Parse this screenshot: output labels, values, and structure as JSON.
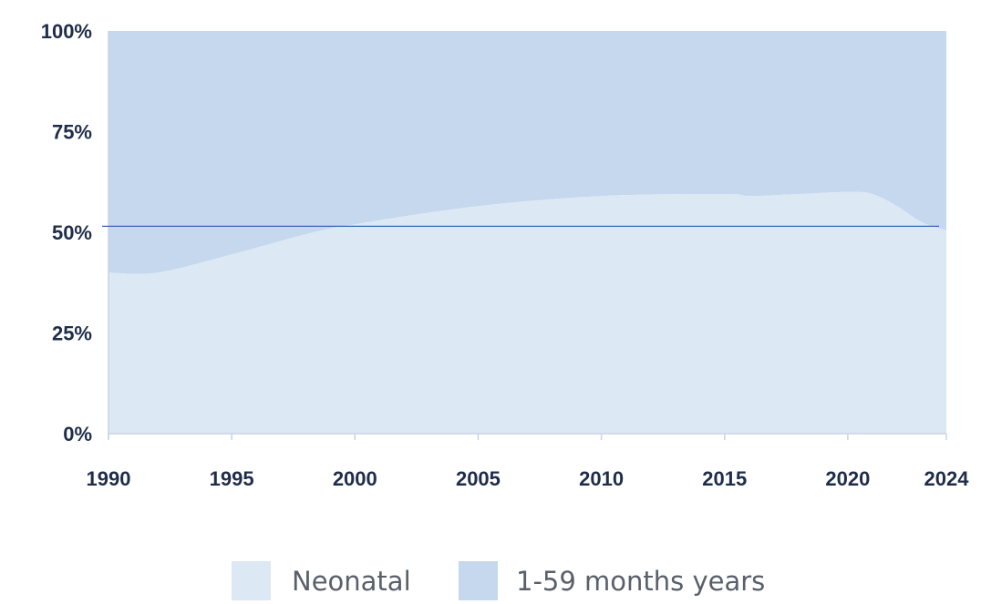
{
  "chart_data": {
    "type": "area",
    "stacked": true,
    "normalized": true,
    "title": "",
    "xlabel": "",
    "ylabel": "",
    "x": [
      1990,
      1992,
      1995,
      1998,
      2000,
      2005,
      2010,
      2015,
      2016,
      2018,
      2020,
      2021,
      2022,
      2023,
      2024
    ],
    "series": [
      {
        "name": "Neonatal",
        "color": "#dde8f5",
        "values": [
          40,
          40,
          44.5,
          49.5,
          52,
          56.5,
          59,
          59.5,
          59,
          59.5,
          60,
          59.5,
          56.5,
          52.5,
          50.5
        ]
      },
      {
        "name": "1-59 months years",
        "color": "#c5d8ee",
        "values": [
          60,
          60,
          55.5,
          50.5,
          48,
          43.5,
          41,
          40.5,
          41,
          40.5,
          40,
          40.5,
          43.5,
          47.5,
          49.5
        ]
      }
    ],
    "xlim": [
      1990,
      2024
    ],
    "ylim": [
      0,
      100
    ],
    "x_ticks": [
      "1990",
      "1995",
      "2000",
      "2005",
      "2010",
      "2015",
      "2020",
      "2024"
    ],
    "y_ticks": [
      "0%",
      "25%",
      "50%",
      "75%",
      "100%"
    ],
    "reference_line": {
      "y": 51.5,
      "color": "#3a67b5"
    },
    "legend_position": "bottom-center",
    "grid": false
  }
}
